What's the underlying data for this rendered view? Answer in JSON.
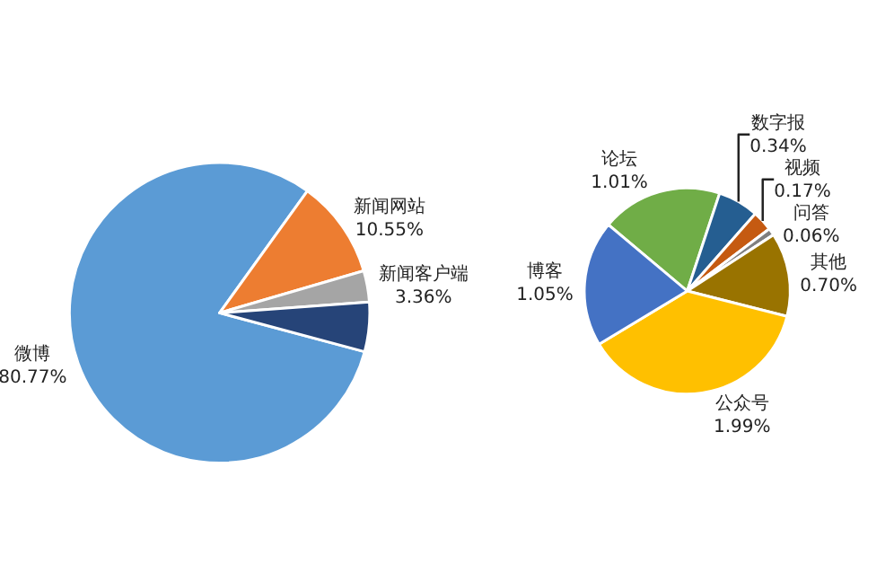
{
  "chart_data": [
    {
      "type": "pie",
      "categories": [
        "微博",
        "新闻网站",
        "新闻客户端",
        null
      ],
      "values": [
        80.77,
        10.55,
        3.36,
        5.32
      ],
      "value_labels": [
        "80.77%",
        "10.55%",
        "3.36%",
        null
      ],
      "colors": [
        "#5b9bd5",
        "#ed7d31",
        "#a5a5a5",
        "#264478"
      ],
      "legend": false
    },
    {
      "type": "pie",
      "categories": [
        "论坛",
        "数字报",
        "视频",
        "问答",
        "其他",
        "公众号",
        "博客"
      ],
      "values": [
        1.01,
        0.34,
        0.17,
        0.06,
        0.7,
        1.99,
        1.05
      ],
      "value_labels": [
        "1.01%",
        "0.34%",
        "0.17%",
        "0.06%",
        "0.70%",
        "1.99%",
        "1.05%"
      ],
      "colors": [
        "#70ad47",
        "#255e91",
        "#c55a11",
        "#7f7f7f",
        "#997300",
        "#ffc000",
        "#4472c4"
      ],
      "legend": false
    }
  ]
}
